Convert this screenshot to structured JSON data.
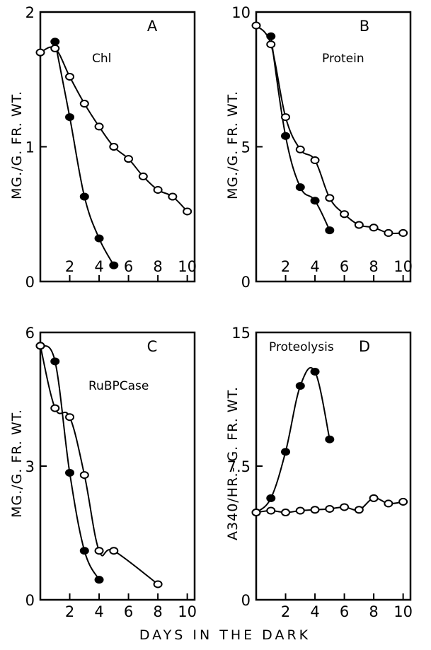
{
  "figure": {
    "xlabel": "DAYS IN THE DARK"
  },
  "chart_data": [
    {
      "type": "line",
      "panel": "A",
      "title": "Chl",
      "ylabel": "MG./G. FR. WT.",
      "xlim": [
        0,
        10.5
      ],
      "ylim": [
        0,
        2
      ],
      "xticks": [
        "2",
        "4",
        "6",
        "8",
        "10"
      ],
      "yticks": [
        "0",
        "1",
        "2"
      ],
      "series": [
        {
          "style": "filled",
          "points": [
            [
              1,
              1.78
            ],
            [
              2,
              1.22
            ],
            [
              3,
              0.63
            ],
            [
              4,
              0.32
            ],
            [
              5,
              0.12
            ]
          ]
        },
        {
          "style": "open",
          "points": [
            [
              0,
              1.7
            ],
            [
              1,
              1.73
            ],
            [
              2,
              1.52
            ],
            [
              3,
              1.32
            ],
            [
              4,
              1.15
            ],
            [
              5,
              1.0
            ],
            [
              6,
              0.91
            ],
            [
              7,
              0.78
            ],
            [
              8,
              0.68
            ],
            [
              9,
              0.63
            ],
            [
              10,
              0.52
            ]
          ]
        }
      ]
    },
    {
      "type": "line",
      "panel": "B",
      "title": "Protein",
      "ylabel": "MG./G. FR. WT.",
      "xlim": [
        0,
        10.5
      ],
      "ylim": [
        0,
        10
      ],
      "xticks": [
        "2",
        "4",
        "6",
        "8",
        "10"
      ],
      "yticks": [
        "0",
        "5",
        "10"
      ],
      "series": [
        {
          "style": "filled",
          "points": [
            [
              1,
              9.1
            ],
            [
              2,
              5.4
            ],
            [
              3,
              3.5
            ],
            [
              4,
              3.0
            ],
            [
              5,
              1.9
            ]
          ]
        },
        {
          "style": "open",
          "points": [
            [
              0,
              9.5
            ],
            [
              1,
              8.8
            ],
            [
              2,
              6.1
            ],
            [
              3,
              4.9
            ],
            [
              4,
              4.5
            ],
            [
              5,
              3.1
            ],
            [
              6,
              2.5
            ],
            [
              7,
              2.1
            ],
            [
              8,
              2.0
            ],
            [
              9,
              1.8
            ],
            [
              10,
              1.8
            ]
          ]
        }
      ]
    },
    {
      "type": "line",
      "panel": "C",
      "title": "RuBPCase",
      "ylabel": "MG./G. FR. WT.",
      "xlim": [
        0,
        10.5
      ],
      "ylim": [
        0,
        6
      ],
      "xticks": [
        "2",
        "4",
        "6",
        "8",
        "10"
      ],
      "yticks": [
        "0",
        "3",
        "6"
      ],
      "series": [
        {
          "style": "filled",
          "points": [
            [
              0,
              5.7
            ],
            [
              1,
              5.35
            ],
            [
              2,
              2.85
            ],
            [
              3,
              1.1
            ],
            [
              4,
              0.45
            ]
          ]
        },
        {
          "style": "open",
          "points": [
            [
              0,
              5.7
            ],
            [
              1,
              4.3
            ],
            [
              2,
              4.1
            ],
            [
              3,
              2.8
            ],
            [
              4,
              1.1
            ],
            [
              5,
              1.1
            ],
            [
              8,
              0.35
            ]
          ]
        }
      ]
    },
    {
      "type": "line",
      "panel": "D",
      "title": "Proteolysis",
      "ylabel": "A340/HR.- G. FR. WT.",
      "xlim": [
        0,
        10.5
      ],
      "ylim": [
        0,
        15
      ],
      "xticks": [
        "2",
        "4",
        "6",
        "8",
        "10"
      ],
      "yticks": [
        "0",
        "7.5",
        "15"
      ],
      "series": [
        {
          "style": "filled",
          "points": [
            [
              0,
              4.9
            ],
            [
              1,
              5.7
            ],
            [
              2,
              8.3
            ],
            [
              3,
              12.0
            ],
            [
              4,
              12.8
            ],
            [
              5,
              9.0
            ]
          ]
        },
        {
          "style": "open",
          "points": [
            [
              0,
              4.9
            ],
            [
              1,
              5.0
            ],
            [
              2,
              4.9
            ],
            [
              3,
              5.0
            ],
            [
              4,
              5.05
            ],
            [
              5,
              5.1
            ],
            [
              6,
              5.2
            ],
            [
              7,
              5.05
            ],
            [
              8,
              5.7
            ],
            [
              9,
              5.4
            ],
            [
              10,
              5.5
            ]
          ]
        }
      ]
    }
  ]
}
